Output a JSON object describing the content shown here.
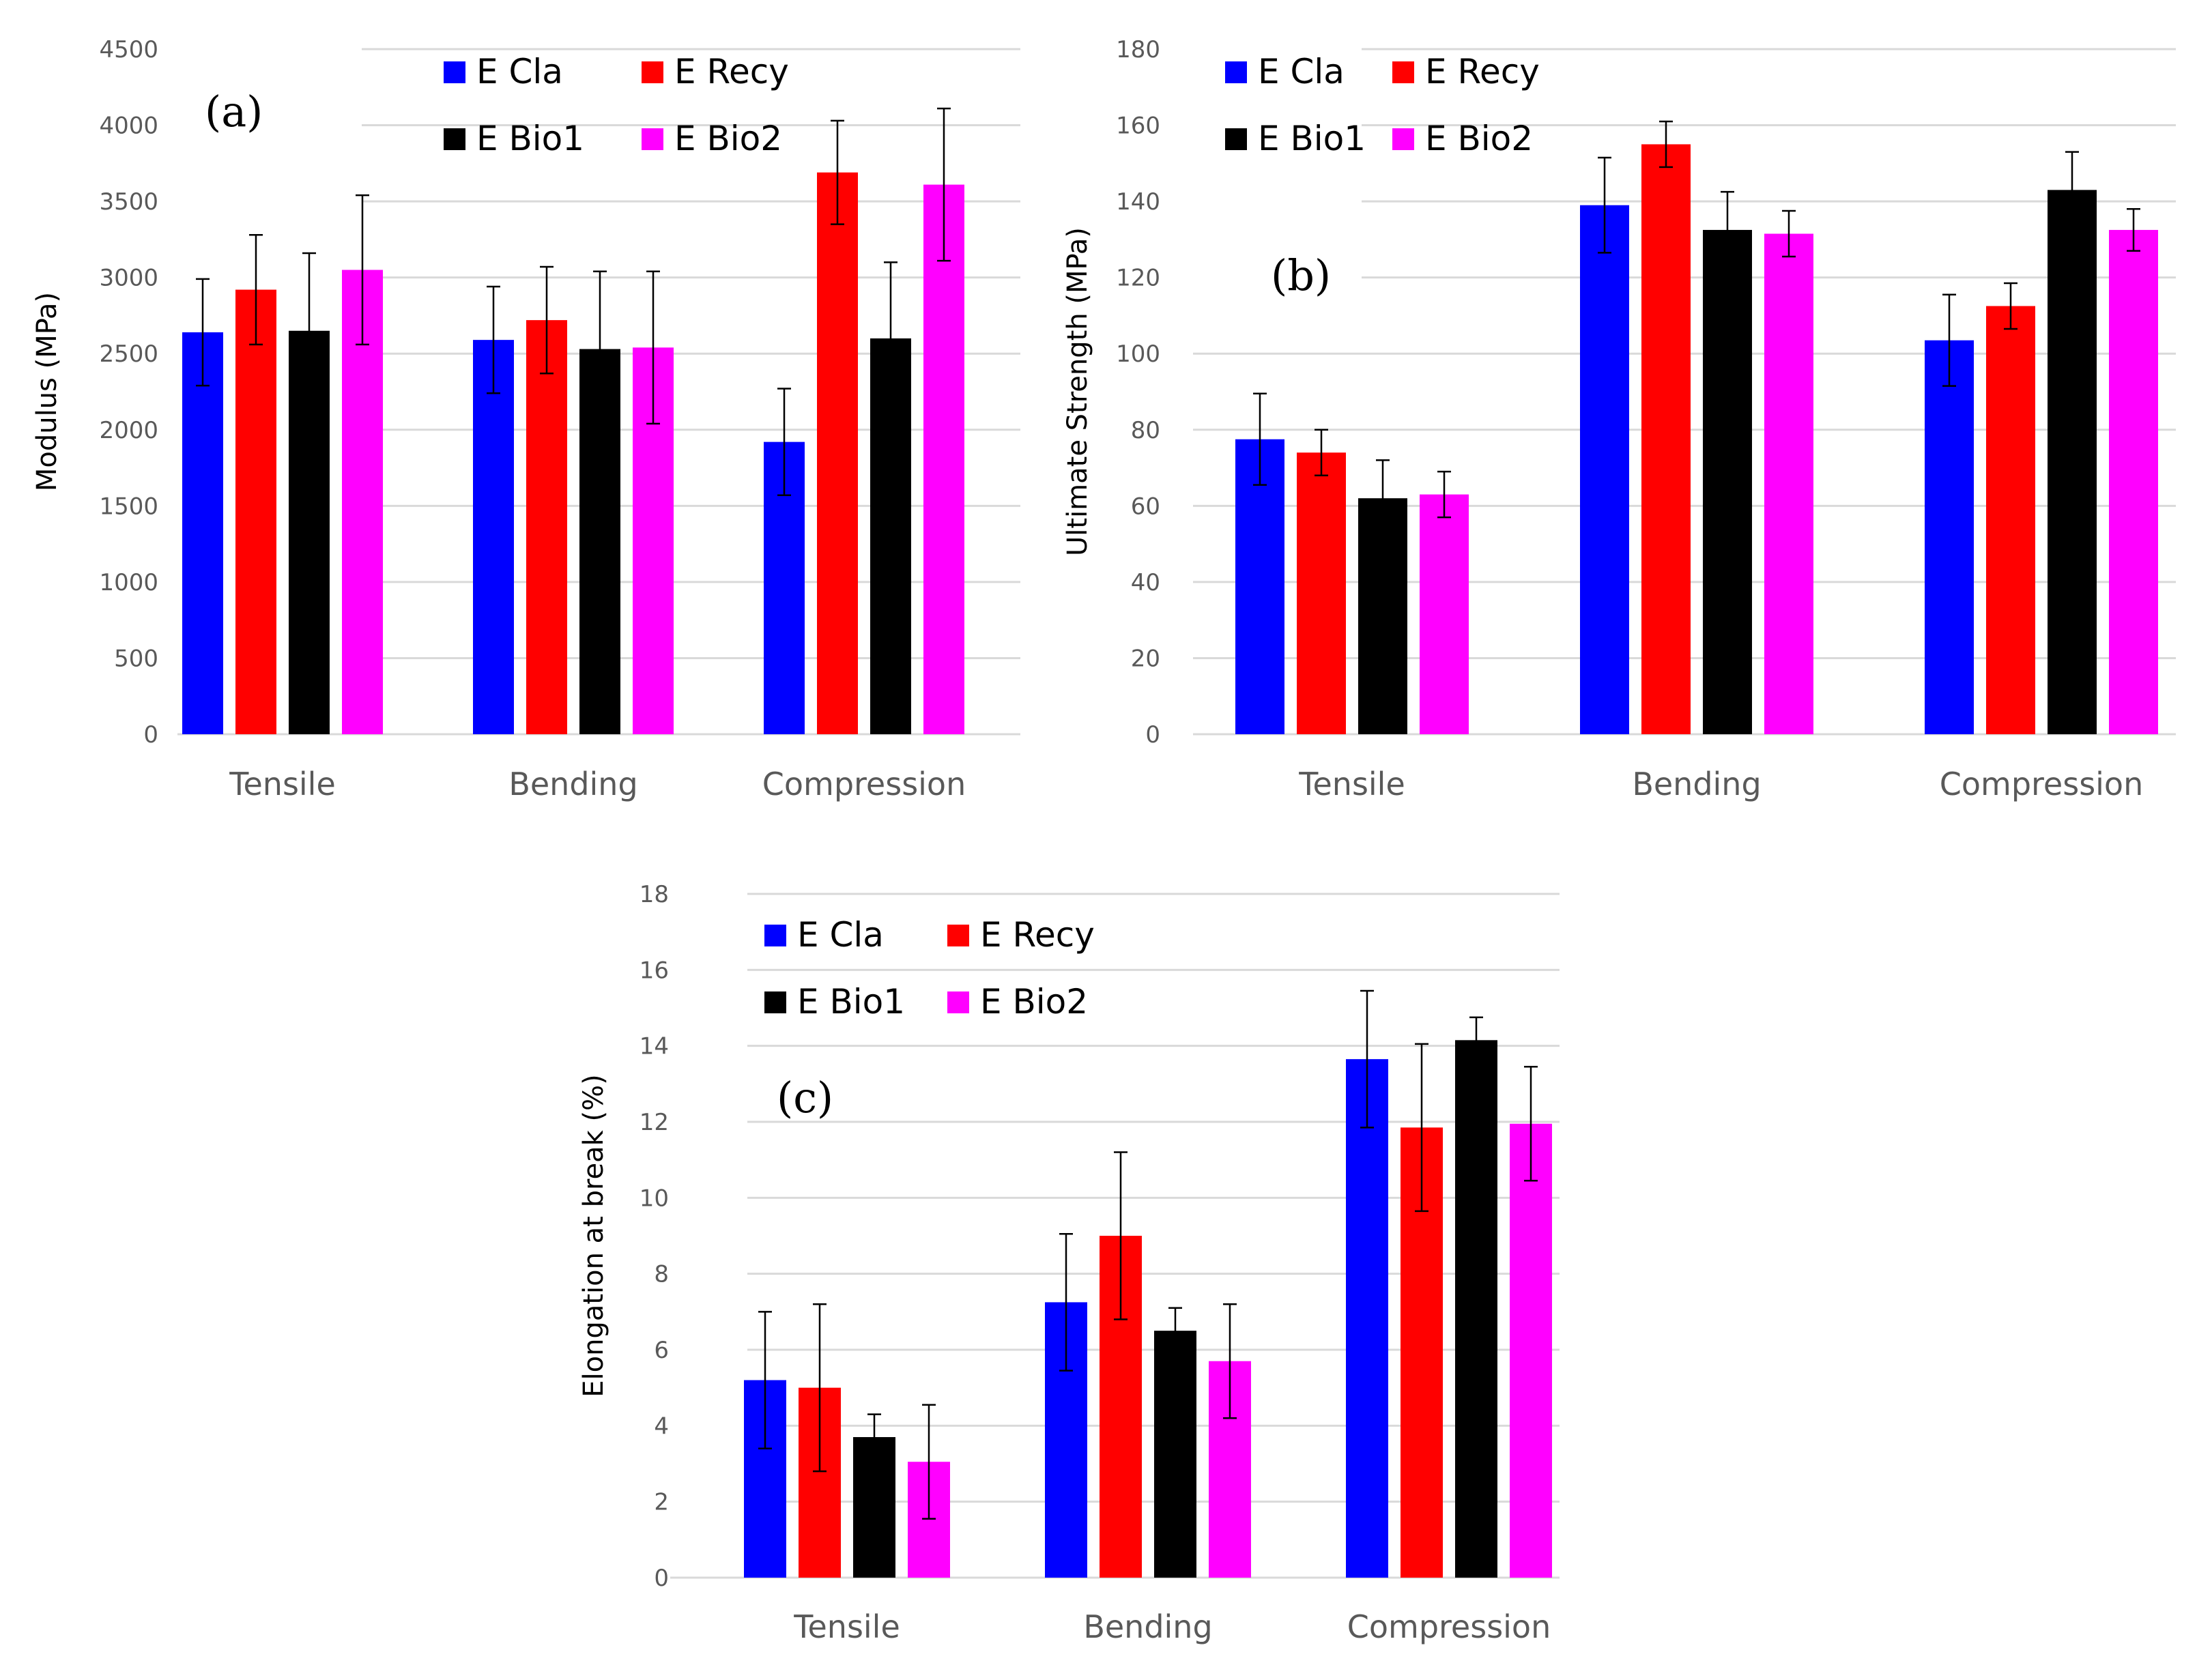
{
  "series_styles": [
    {
      "name": "E Cla",
      "color": "#0000ff"
    },
    {
      "name": "E Recy",
      "color": "#ff0000"
    },
    {
      "name": "E Bio1",
      "color": "#000000"
    },
    {
      "name": "E Bio2",
      "color": "#ff00ff"
    }
  ],
  "chart_data": [
    {
      "id": "a",
      "type": "bar",
      "panel_label": "(a)",
      "title": "",
      "xlabel": "",
      "ylabel": "Modulus (MPa)",
      "ylim": [
        0,
        4500
      ],
      "yticks": [
        0,
        500,
        1000,
        1500,
        2000,
        2500,
        3000,
        3500,
        4000,
        4500
      ],
      "ytick_labels": [
        "0",
        "500",
        "1000",
        "1500",
        "2000",
        "2500",
        "3000",
        "3500",
        "4000",
        "4500"
      ],
      "grid": true,
      "legend_position": "top",
      "categories": [
        "Tensile",
        "Bending",
        "Compression"
      ],
      "series": [
        {
          "name": "E Cla",
          "values": [
            2640,
            2590,
            1920
          ],
          "errors": [
            350,
            350,
            350
          ]
        },
        {
          "name": "E Recy",
          "values": [
            2920,
            2720,
            3690
          ],
          "errors": [
            360,
            350,
            340
          ]
        },
        {
          "name": "E Bio1",
          "values": [
            2650,
            2530,
            2600
          ],
          "errors": [
            510,
            510,
            500
          ]
        },
        {
          "name": "E Bio2",
          "values": [
            3050,
            2540,
            3610
          ],
          "errors": [
            490,
            500,
            500
          ]
        }
      ]
    },
    {
      "id": "b",
      "type": "bar",
      "panel_label": "(b)",
      "title": "",
      "xlabel": "",
      "ylabel": "Ultimate Strength (MPa)",
      "ylim": [
        0,
        180
      ],
      "yticks": [
        0,
        20,
        40,
        60,
        80,
        100,
        120,
        140,
        160,
        180
      ],
      "ytick_labels": [
        "0",
        "20",
        "40",
        "60",
        "80",
        "100",
        "120",
        "140",
        "160",
        "180"
      ],
      "grid": true,
      "legend_position": "top",
      "categories": [
        "Tensile",
        "Bending",
        "Compression"
      ],
      "series": [
        {
          "name": "E Cla",
          "values": [
            77.5,
            139,
            103.5
          ],
          "errors": [
            12,
            12.5,
            12
          ]
        },
        {
          "name": "E Recy",
          "values": [
            74,
            155,
            112.5
          ],
          "errors": [
            6,
            6,
            6
          ]
        },
        {
          "name": "E Bio1",
          "values": [
            62,
            132.5,
            143
          ],
          "errors": [
            10,
            10,
            10
          ]
        },
        {
          "name": "E Bio2",
          "values": [
            63,
            131.5,
            132.5
          ],
          "errors": [
            6,
            6,
            5.5
          ]
        }
      ]
    },
    {
      "id": "c",
      "type": "bar",
      "panel_label": "(c)",
      "title": "",
      "xlabel": "",
      "ylabel": "Elongation at break (%)",
      "ylim": [
        0,
        18
      ],
      "yticks": [
        0,
        2,
        4,
        6,
        8,
        10,
        12,
        14,
        16,
        18
      ],
      "ytick_labels": [
        "0",
        "2",
        "4",
        "6",
        "8",
        "10",
        "12",
        "14",
        "16",
        "18"
      ],
      "grid": true,
      "legend_position": "top-left",
      "categories": [
        "Tensile",
        "Bending",
        "Compression"
      ],
      "series": [
        {
          "name": "E Cla",
          "values": [
            5.2,
            7.25,
            13.65
          ],
          "errors": [
            1.8,
            1.8,
            1.8
          ]
        },
        {
          "name": "E Recy",
          "values": [
            5.0,
            9.0,
            11.85
          ],
          "errors": [
            2.2,
            2.2,
            2.2
          ]
        },
        {
          "name": "E Bio1",
          "values": [
            3.7,
            6.5,
            14.15
          ],
          "errors": [
            0.6,
            0.6,
            0.6
          ]
        },
        {
          "name": "E Bio2",
          "values": [
            3.05,
            5.7,
            11.95
          ],
          "errors": [
            1.5,
            1.5,
            1.5
          ]
        }
      ]
    }
  ]
}
